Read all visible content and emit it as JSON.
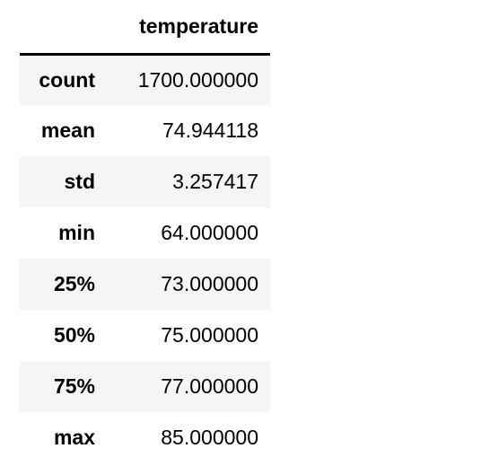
{
  "table": {
    "corner": "",
    "columns": [
      "temperature"
    ],
    "rows": [
      {
        "label": "count",
        "value": "1700.000000"
      },
      {
        "label": "mean",
        "value": "74.944118"
      },
      {
        "label": "std",
        "value": "3.257417"
      },
      {
        "label": "min",
        "value": "64.000000"
      },
      {
        "label": "25%",
        "value": "73.000000"
      },
      {
        "label": "50%",
        "value": "75.000000"
      },
      {
        "label": "75%",
        "value": "77.000000"
      },
      {
        "label": "max",
        "value": "85.000000"
      }
    ]
  },
  "colors": {
    "stripe": "#f5f5f5",
    "background": "#ffffff",
    "header_rule": "#000000",
    "text": "#000000"
  }
}
